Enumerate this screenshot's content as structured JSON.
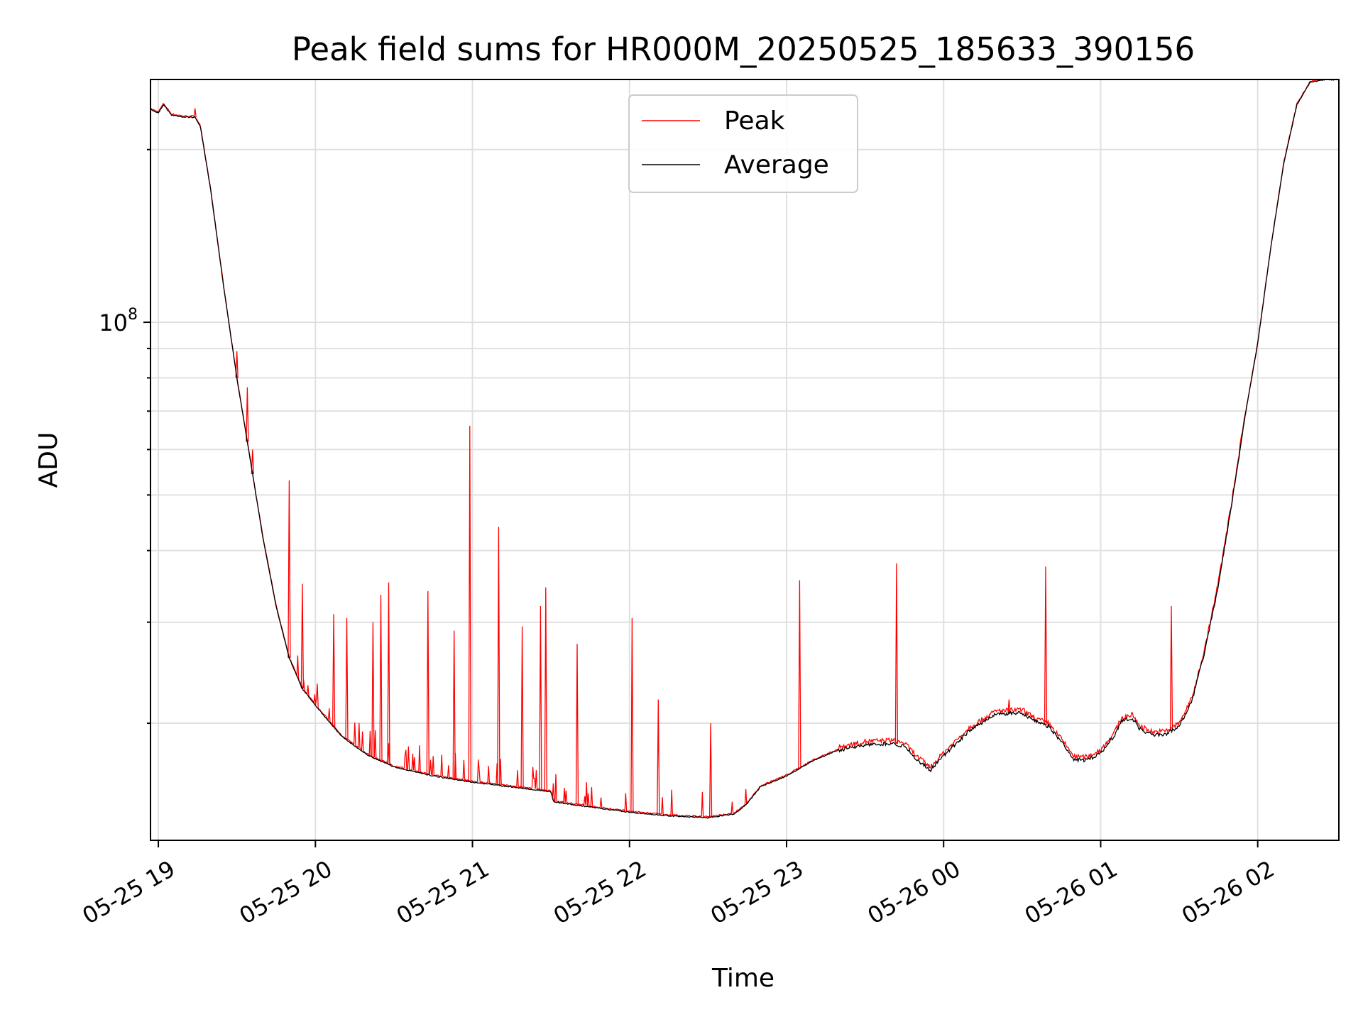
{
  "chart_data": {
    "type": "line",
    "title": "Peak field sums for HR000M_20250525_185633_390156",
    "xlabel": "Time",
    "ylabel": "ADU",
    "yscale": "log",
    "ylim": [
      12500000,
      265000000
    ],
    "xlim": [
      "2025-05-25 18:57",
      "2025-05-26 02:31"
    ],
    "grid": true,
    "legend": "upper center",
    "x_ticks": [
      {
        "t": "2025-05-25 19:00",
        "label": "05-25 19"
      },
      {
        "t": "2025-05-25 20:00",
        "label": "05-25 20"
      },
      {
        "t": "2025-05-25 21:00",
        "label": "05-25 21"
      },
      {
        "t": "2025-05-25 22:00",
        "label": "05-25 22"
      },
      {
        "t": "2025-05-25 23:00",
        "label": "05-25 23"
      },
      {
        "t": "2025-05-26 00:00",
        "label": "05-26 00"
      },
      {
        "t": "2025-05-26 01:00",
        "label": "05-26 01"
      },
      {
        "t": "2025-05-26 02:00",
        "label": "05-26 02"
      }
    ],
    "y_major_ticks": [
      {
        "value": 100000000,
        "base": "10",
        "exp": "8"
      }
    ],
    "series": [
      {
        "name": "Average",
        "color": "#000000",
        "x": [
          "2025-05-25 18:57",
          "2025-05-25 19:00",
          "2025-05-25 19:02",
          "2025-05-25 19:05",
          "2025-05-25 19:10",
          "2025-05-25 19:14",
          "2025-05-25 19:16",
          "2025-05-25 19:20",
          "2025-05-25 19:25",
          "2025-05-25 19:30",
          "2025-05-25 19:35",
          "2025-05-25 19:40",
          "2025-05-25 19:45",
          "2025-05-25 19:50",
          "2025-05-25 19:55",
          "2025-05-25 20:00",
          "2025-05-25 20:10",
          "2025-05-25 20:20",
          "2025-05-25 20:30",
          "2025-05-25 20:45",
          "2025-05-25 21:00",
          "2025-05-25 21:15",
          "2025-05-25 21:30",
          "2025-05-25 21:31",
          "2025-05-25 21:45",
          "2025-05-25 22:00",
          "2025-05-25 22:15",
          "2025-05-25 22:30",
          "2025-05-25 22:40",
          "2025-05-25 22:45",
          "2025-05-25 22:50",
          "2025-05-25 23:00",
          "2025-05-25 23:10",
          "2025-05-25 23:20",
          "2025-05-25 23:30",
          "2025-05-25 23:40",
          "2025-05-25 23:45",
          "2025-05-25 23:50",
          "2025-05-25 23:55",
          "2025-05-26 00:00",
          "2025-05-26 00:10",
          "2025-05-26 00:20",
          "2025-05-26 00:30",
          "2025-05-26 00:35",
          "2025-05-26 00:40",
          "2025-05-26 00:45",
          "2025-05-26 00:50",
          "2025-05-26 00:55",
          "2025-05-26 01:00",
          "2025-05-26 01:05",
          "2025-05-26 01:08",
          "2025-05-26 01:12",
          "2025-05-26 01:15",
          "2025-05-26 01:20",
          "2025-05-26 01:25",
          "2025-05-26 01:30",
          "2025-05-26 01:35",
          "2025-05-26 01:40",
          "2025-05-26 01:45",
          "2025-05-26 01:50",
          "2025-05-26 01:55",
          "2025-05-26 02:00",
          "2025-05-26 02:05",
          "2025-05-26 02:10",
          "2025-05-26 02:15",
          "2025-05-26 02:20",
          "2025-05-26 02:25",
          "2025-05-26 02:31"
        ],
        "values": [
          235000000,
          232000000,
          240000000,
          230000000,
          228000000,
          228000000,
          220000000,
          170000000,
          115000000,
          80000000,
          58000000,
          42000000,
          32000000,
          26000000,
          23000000,
          21500000,
          19000000,
          17600000,
          16800000,
          16200000,
          15800000,
          15500000,
          15200000,
          14600000,
          14300000,
          14000000,
          13800000,
          13700000,
          13900000,
          14500000,
          15500000,
          16200000,
          17200000,
          18000000,
          18400000,
          18500000,
          18300000,
          17300000,
          16600000,
          17600000,
          19500000,
          20800000,
          20900000,
          20200000,
          19800000,
          18600000,
          17300000,
          17300000,
          17800000,
          19000000,
          20200000,
          20500000,
          19600000,
          19100000,
          19200000,
          19800000,
          22000000,
          27000000,
          35000000,
          48000000,
          68000000,
          92000000,
          135000000,
          190000000,
          240000000,
          262000000,
          265000000,
          265000000
        ]
      },
      {
        "name": "Peak",
        "color": "#ff0000",
        "spikes": [
          {
            "t": "2025-05-25 19:02",
            "value": 240000000
          },
          {
            "t": "2025-05-25 19:14",
            "value": 236000000
          },
          {
            "t": "2025-05-25 19:30",
            "value": 89000000
          },
          {
            "t": "2025-05-25 19:34",
            "value": 77000000
          },
          {
            "t": "2025-05-25 19:36",
            "value": 60000000
          },
          {
            "t": "2025-05-25 19:50",
            "value": 53000000
          },
          {
            "t": "2025-05-25 19:55",
            "value": 35000000
          },
          {
            "t": "2025-05-25 20:07",
            "value": 31000000
          },
          {
            "t": "2025-05-25 20:12",
            "value": 30500000
          },
          {
            "t": "2025-05-25 20:22",
            "value": 30000000
          },
          {
            "t": "2025-05-25 20:25",
            "value": 33500000
          },
          {
            "t": "2025-05-25 20:28",
            "value": 35200000
          },
          {
            "t": "2025-05-25 20:43",
            "value": 34000000
          },
          {
            "t": "2025-05-25 20:53",
            "value": 29000000
          },
          {
            "t": "2025-05-25 20:59",
            "value": 66000000
          },
          {
            "t": "2025-05-25 21:10",
            "value": 44000000
          },
          {
            "t": "2025-05-25 21:19",
            "value": 29500000
          },
          {
            "t": "2025-05-25 21:26",
            "value": 32000000
          },
          {
            "t": "2025-05-25 21:28",
            "value": 34500000
          },
          {
            "t": "2025-05-25 21:40",
            "value": 27500000
          },
          {
            "t": "2025-05-25 22:01",
            "value": 30500000
          },
          {
            "t": "2025-05-25 22:11",
            "value": 22000000
          },
          {
            "t": "2025-05-25 22:31",
            "value": 20000000
          },
          {
            "t": "2025-05-25 23:05",
            "value": 35500000
          },
          {
            "t": "2025-05-25 23:42",
            "value": 38000000
          },
          {
            "t": "2025-05-26 00:25",
            "value": 22000000
          },
          {
            "t": "2025-05-26 00:39",
            "value": 37500000
          },
          {
            "t": "2025-05-26 01:27",
            "value": 32000000
          }
        ]
      }
    ]
  }
}
